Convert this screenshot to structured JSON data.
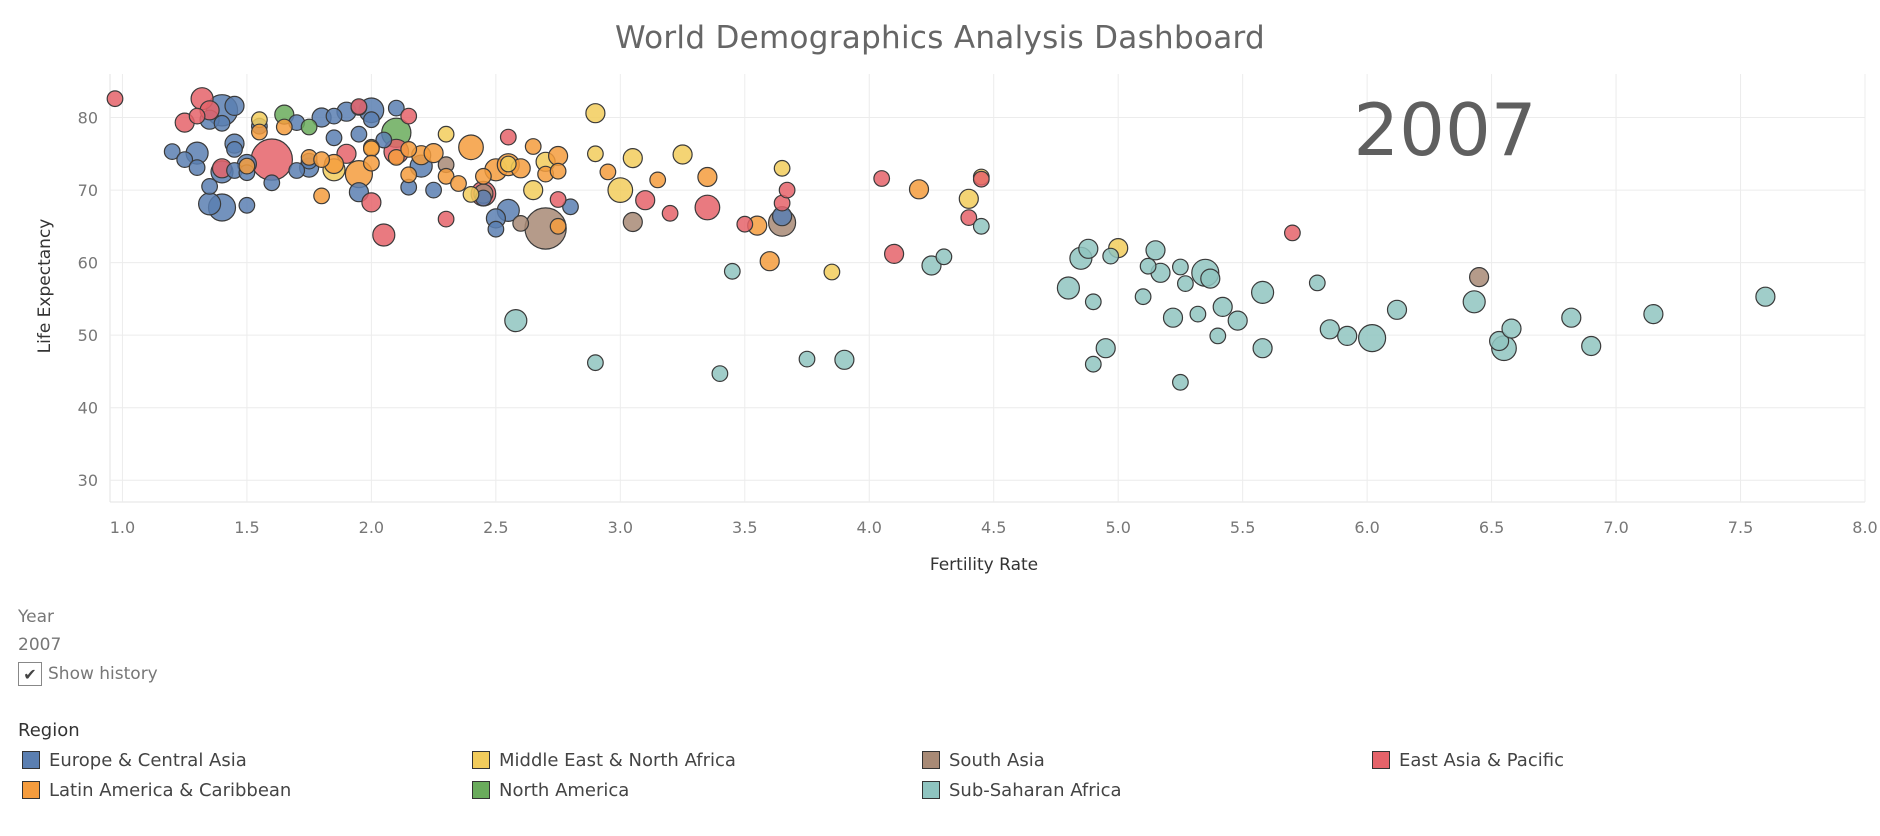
{
  "page": {
    "title": "World Demographics Analysis Dashboard"
  },
  "controls": {
    "year_label": "Year",
    "year_value": "2007",
    "show_history_label": "Show history",
    "show_history_checked": true
  },
  "legend": {
    "title": "Region",
    "items": [
      {
        "label": "Europe & Central Asia",
        "color": "#5b7fb1"
      },
      {
        "label": "Middle East & North Africa",
        "color": "#f2cc5c"
      },
      {
        "label": "South Asia",
        "color": "#a88a76"
      },
      {
        "label": "East Asia & Pacific",
        "color": "#e5636a"
      },
      {
        "label": "Latin America & Caribbean",
        "color": "#f59c3d"
      },
      {
        "label": "North America",
        "color": "#6aab5c"
      },
      {
        "label": "Sub-Saharan Africa",
        "color": "#8fc4c0"
      }
    ]
  },
  "chart_data": {
    "type": "scatter",
    "title": "World Demographics Analysis Dashboard",
    "xlabel": "Fertility Rate",
    "ylabel": "Life Expectancy",
    "xlim": [
      0.95,
      8.0
    ],
    "ylim": [
      27,
      86
    ],
    "xticks": [
      "1.0",
      "1.5",
      "2.0",
      "2.5",
      "3.0",
      "3.5",
      "4.0",
      "4.5",
      "5.0",
      "5.5",
      "6.0",
      "6.5",
      "7.0",
      "7.5",
      "8.0"
    ],
    "yticks": [
      "30",
      "40",
      "50",
      "60",
      "70",
      "80"
    ],
    "annotation": "2007",
    "grid": true,
    "size_encoding": "population (relative)",
    "series": [
      {
        "name": "Europe & Central Asia",
        "color": "#5b7fb1",
        "points": [
          [
            1.2,
            75.3,
            2
          ],
          [
            1.25,
            74.2,
            2
          ],
          [
            1.3,
            75.1,
            4
          ],
          [
            1.3,
            73.1,
            2
          ],
          [
            1.35,
            70.5,
            2
          ],
          [
            1.35,
            68.1,
            4
          ],
          [
            1.4,
            67.6,
            6
          ],
          [
            1.35,
            79.7,
            3
          ],
          [
            1.4,
            81.0,
            8
          ],
          [
            1.45,
            81.6,
            3
          ],
          [
            1.4,
            79.2,
            2
          ],
          [
            1.45,
            76.4,
            3
          ],
          [
            1.5,
            73.6,
            3
          ],
          [
            1.45,
            72.7,
            2
          ],
          [
            1.5,
            72.4,
            2
          ],
          [
            1.45,
            75.6,
            2
          ],
          [
            1.55,
            78.8,
            2
          ],
          [
            1.6,
            71.0,
            2
          ],
          [
            1.4,
            72.5,
            4
          ],
          [
            1.7,
            79.3,
            2
          ],
          [
            1.75,
            74.0,
            2
          ],
          [
            1.75,
            73.1,
            3
          ],
          [
            1.8,
            80.0,
            3
          ],
          [
            1.85,
            80.2,
            2
          ],
          [
            1.9,
            80.8,
            3
          ],
          [
            1.95,
            81.4,
            2
          ],
          [
            1.95,
            77.7,
            2
          ],
          [
            2.0,
            81.0,
            5
          ],
          [
            2.0,
            79.7,
            2
          ],
          [
            1.95,
            69.7,
            3
          ],
          [
            2.05,
            76.9,
            2
          ],
          [
            2.1,
            81.3,
            2
          ],
          [
            2.15,
            70.4,
            2
          ],
          [
            2.2,
            73.3,
            4
          ],
          [
            2.25,
            70.0,
            2
          ],
          [
            2.45,
            68.9,
            2
          ],
          [
            2.5,
            66.1,
            3
          ],
          [
            2.55,
            67.2,
            4
          ],
          [
            2.5,
            64.6,
            2
          ],
          [
            2.8,
            67.7,
            2
          ],
          [
            3.65,
            66.4,
            3
          ],
          [
            1.5,
            67.9,
            2
          ],
          [
            1.7,
            72.7,
            2
          ],
          [
            1.85,
            77.2,
            2
          ]
        ]
      },
      {
        "name": "Middle East & North Africa",
        "color": "#f2cc5c",
        "points": [
          [
            1.55,
            79.7,
            2
          ],
          [
            1.85,
            72.8,
            4
          ],
          [
            2.0,
            75.9,
            2
          ],
          [
            2.3,
            77.7,
            2
          ],
          [
            2.4,
            69.4,
            2
          ],
          [
            2.55,
            73.6,
            2
          ],
          [
            2.65,
            70.0,
            3
          ],
          [
            2.7,
            73.9,
            3
          ],
          [
            2.9,
            75.0,
            2
          ],
          [
            2.9,
            80.6,
            3
          ],
          [
            3.0,
            70.0,
            5
          ],
          [
            3.05,
            74.4,
            3
          ],
          [
            3.25,
            74.9,
            3
          ],
          [
            3.65,
            73.0,
            2
          ],
          [
            3.85,
            58.7,
            2
          ],
          [
            4.4,
            68.8,
            3
          ],
          [
            4.45,
            71.8,
            2
          ],
          [
            5.0,
            62.0,
            3
          ]
        ]
      },
      {
        "name": "South Asia",
        "color": "#a88a76",
        "points": [
          [
            2.3,
            73.5,
            2
          ],
          [
            2.45,
            69.5,
            3
          ],
          [
            2.6,
            65.4,
            2
          ],
          [
            2.7,
            64.7,
            14
          ],
          [
            3.05,
            65.6,
            3
          ],
          [
            3.65,
            65.5,
            6
          ],
          [
            6.45,
            58.0,
            3
          ]
        ]
      },
      {
        "name": "East Asia & Pacific",
        "color": "#e5636a",
        "points": [
          [
            0.97,
            82.6,
            2
          ],
          [
            1.25,
            79.3,
            3
          ],
          [
            1.3,
            80.2,
            2
          ],
          [
            1.32,
            82.6,
            4
          ],
          [
            1.35,
            81.0,
            3
          ],
          [
            1.4,
            73.0,
            3
          ],
          [
            1.6,
            74.2,
            14
          ],
          [
            1.9,
            75.0,
            3
          ],
          [
            1.95,
            81.5,
            2
          ],
          [
            2.0,
            68.3,
            3
          ],
          [
            2.05,
            63.8,
            4
          ],
          [
            2.1,
            75.3,
            5
          ],
          [
            2.15,
            80.2,
            2
          ],
          [
            2.3,
            66.0,
            2
          ],
          [
            2.45,
            69.5,
            5
          ],
          [
            2.55,
            77.3,
            2
          ],
          [
            2.75,
            68.7,
            2
          ],
          [
            3.1,
            68.6,
            3
          ],
          [
            3.2,
            66.8,
            2
          ],
          [
            3.35,
            67.6,
            5
          ],
          [
            3.5,
            65.3,
            2
          ],
          [
            3.65,
            68.2,
            2
          ],
          [
            3.67,
            70.0,
            2
          ],
          [
            4.05,
            71.6,
            2
          ],
          [
            4.1,
            61.2,
            3
          ],
          [
            4.4,
            66.2,
            2
          ],
          [
            4.45,
            71.5,
            2
          ],
          [
            5.7,
            64.1,
            2
          ]
        ]
      },
      {
        "name": "Latin America & Caribbean",
        "color": "#f59c3d",
        "points": [
          [
            1.5,
            73.3,
            2
          ],
          [
            1.55,
            78.0,
            2
          ],
          [
            1.65,
            78.7,
            2
          ],
          [
            1.75,
            74.5,
            2
          ],
          [
            1.8,
            69.2,
            2
          ],
          [
            1.8,
            74.2,
            2
          ],
          [
            1.85,
            73.6,
            3
          ],
          [
            1.95,
            72.2,
            6
          ],
          [
            2.0,
            75.7,
            2
          ],
          [
            2.0,
            73.7,
            2
          ],
          [
            2.1,
            74.5,
            2
          ],
          [
            2.15,
            72.1,
            2
          ],
          [
            2.15,
            75.6,
            2
          ],
          [
            2.2,
            74.8,
            3
          ],
          [
            2.25,
            75.1,
            3
          ],
          [
            2.3,
            71.9,
            2
          ],
          [
            2.35,
            70.9,
            2
          ],
          [
            2.4,
            75.9,
            5
          ],
          [
            2.45,
            71.9,
            2
          ],
          [
            2.5,
            72.8,
            4
          ],
          [
            2.55,
            73.5,
            4
          ],
          [
            2.6,
            73.0,
            3
          ],
          [
            2.65,
            76.0,
            2
          ],
          [
            2.7,
            72.2,
            2
          ],
          [
            2.75,
            74.7,
            3
          ],
          [
            2.75,
            72.6,
            2
          ],
          [
            2.75,
            65.0,
            2
          ],
          [
            2.95,
            72.5,
            2
          ],
          [
            3.15,
            71.4,
            2
          ],
          [
            3.35,
            71.8,
            3
          ],
          [
            3.55,
            65.1,
            3
          ],
          [
            3.6,
            60.2,
            3
          ],
          [
            4.2,
            70.1,
            3
          ]
        ]
      },
      {
        "name": "North America",
        "color": "#6aab5c",
        "points": [
          [
            1.65,
            80.4,
            3
          ],
          [
            1.75,
            78.7,
            2
          ],
          [
            2.1,
            77.9,
            7
          ]
        ]
      },
      {
        "name": "Sub-Saharan Africa",
        "color": "#8fc4c0",
        "points": [
          [
            2.58,
            52.0,
            4
          ],
          [
            2.9,
            46.2,
            2
          ],
          [
            3.4,
            44.7,
            2
          ],
          [
            3.45,
            58.8,
            2
          ],
          [
            3.75,
            46.7,
            2
          ],
          [
            3.9,
            46.6,
            3
          ],
          [
            4.25,
            59.6,
            3
          ],
          [
            4.3,
            60.8,
            2
          ],
          [
            4.45,
            65.0,
            2
          ],
          [
            4.8,
            56.5,
            4
          ],
          [
            4.85,
            60.6,
            4
          ],
          [
            4.88,
            61.9,
            3
          ],
          [
            4.9,
            46.0,
            2
          ],
          [
            4.9,
            54.6,
            2
          ],
          [
            4.95,
            48.2,
            3
          ],
          [
            4.97,
            60.9,
            2
          ],
          [
            5.1,
            55.3,
            2
          ],
          [
            5.12,
            59.5,
            2
          ],
          [
            5.15,
            61.7,
            3
          ],
          [
            5.17,
            58.6,
            3
          ],
          [
            5.22,
            52.4,
            3
          ],
          [
            5.25,
            43.5,
            2
          ],
          [
            5.25,
            59.4,
            2
          ],
          [
            5.27,
            57.1,
            2
          ],
          [
            5.32,
            52.9,
            2
          ],
          [
            5.35,
            58.6,
            6
          ],
          [
            5.37,
            57.8,
            3
          ],
          [
            5.4,
            49.9,
            2
          ],
          [
            5.42,
            53.9,
            3
          ],
          [
            5.48,
            52.0,
            3
          ],
          [
            5.58,
            55.9,
            4
          ],
          [
            5.58,
            48.2,
            3
          ],
          [
            5.8,
            57.2,
            2
          ],
          [
            5.85,
            50.8,
            3
          ],
          [
            5.92,
            49.9,
            3
          ],
          [
            6.02,
            49.6,
            6
          ],
          [
            6.12,
            53.5,
            3
          ],
          [
            6.43,
            54.6,
            4
          ],
          [
            6.53,
            49.2,
            3
          ],
          [
            6.55,
            48.2,
            5
          ],
          [
            6.58,
            50.9,
            3
          ],
          [
            6.82,
            52.4,
            3
          ],
          [
            6.9,
            48.5,
            3
          ],
          [
            7.15,
            52.9,
            3
          ],
          [
            7.6,
            55.3,
            3
          ]
        ]
      }
    ]
  }
}
